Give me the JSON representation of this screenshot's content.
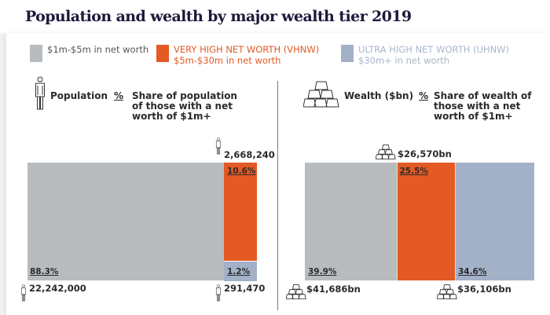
{
  "title": "Population and wealth by major wealth tier 2019",
  "legend": [
    {
      "line1": "$1m-$5m in net worth",
      "line2": "",
      "color": "#b8bcbe"
    },
    {
      "line1": "VERY HIGH NET WORTH (VHNW)",
      "line2": "$5m-$30m in net worth",
      "color": "#e35a24"
    },
    {
      "line1": "ULTRA HIGH NET WORTH (UHNW)",
      "line2": "$30m+ in net worth",
      "color": "#a3b1c8"
    }
  ],
  "population_header": {
    "label": "Population",
    "pct_symbol": "%",
    "desc_lines": [
      "Share of population",
      "of those with a net",
      "worth of $1m+"
    ]
  },
  "wealth_header": {
    "label": "Wealth ($bn)",
    "pct_symbol": "%",
    "desc_lines": [
      "Share of wealth of",
      "those with a net",
      "worth of $1m+"
    ]
  },
  "icons": {
    "population": "person-icon",
    "wealth": "gold-bars-icon"
  },
  "chart_data": [
    {
      "type": "bar",
      "title": "Population",
      "subtitle": "Share of population of those with a net worth of $1m+",
      "categories": [
        "$1m-$5m",
        "VHNW $5m-$30m",
        "UHNW $30m+"
      ],
      "values": [
        22242000,
        2668240,
        291470
      ],
      "value_labels": [
        "22,242,000",
        "2,668,240",
        "291,470"
      ],
      "shares_pct": [
        88.3,
        10.6,
        1.2
      ],
      "share_labels": [
        "88.3%",
        "10.6%",
        "1.2%"
      ],
      "colors": [
        "#b8bcbe",
        "#e35a24",
        "#a3b1c8"
      ]
    },
    {
      "type": "bar",
      "title": "Wealth ($bn)",
      "subtitle": "Share of wealth of those with a net worth of $1m+",
      "categories": [
        "$1m-$5m",
        "VHNW $5m-$30m",
        "UHNW $30m+"
      ],
      "values": [
        41686,
        26570,
        36106
      ],
      "value_labels": [
        "$41,686bn",
        "$26,570bn",
        "$36,106bn"
      ],
      "shares_pct": [
        39.9,
        25.5,
        34.6
      ],
      "share_labels": [
        "39.9%",
        "25.5%",
        "34.6%"
      ],
      "colors": [
        "#b8bcbe",
        "#e35a24",
        "#a3b1c8"
      ]
    }
  ]
}
